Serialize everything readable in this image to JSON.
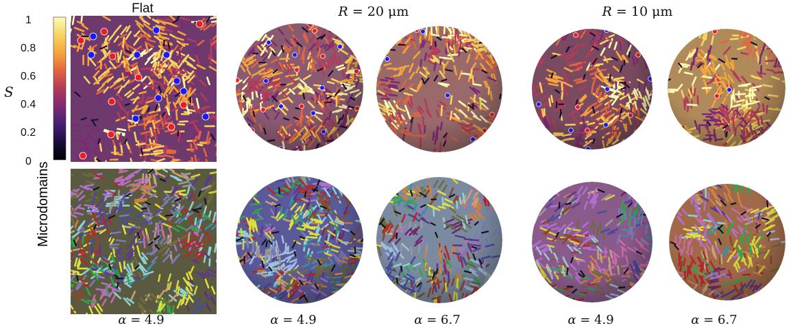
{
  "columns": [
    {
      "title": "Flat"
    },
    {
      "title_var": "R",
      "title_rest": " = 20 μm"
    },
    {
      "title_var": "R",
      "title_rest": " = 10 μm"
    }
  ],
  "colorbar": {
    "label": "S",
    "ticks": [
      "1",
      "0.8",
      "0.6",
      "0.4",
      "0.2",
      "0"
    ],
    "gradient": [
      "#fbfcb3",
      "#f7d461",
      "#f5a53c",
      "#e2663f",
      "#b33a5a",
      "#7d2a74",
      "#461f75",
      "#1a0d3a",
      "#000004"
    ]
  },
  "row_labels": {
    "bottom": "Microdomains"
  },
  "panel_captions": [
    {
      "var": "α",
      "rest": " = 4.9"
    },
    {
      "var": "α",
      "rest": " = 4.9"
    },
    {
      "var": "α",
      "rest": " = 6.7"
    },
    {
      "var": "α",
      "rest": " = 4.9"
    },
    {
      "var": "α",
      "rest": " = 6.7"
    }
  ],
  "defect_colors": {
    "positive": "#ee1c1c",
    "negative": "#1b1bee"
  },
  "domain_palette": [
    "#6f6c3a",
    "#7a7ab5",
    "#d6d43a",
    "#2fa64a",
    "#8a4a2a",
    "#c96aa8",
    "#5a3a8c",
    "#c8a07a",
    "#3a8fa6",
    "#b02a2a",
    "#9a9a9a",
    "#e0e040",
    "#8fd0d0",
    "#6a2a6a",
    "#a0c0e0",
    "#d08040",
    "#4a4aa0",
    "#b070d0"
  ]
}
